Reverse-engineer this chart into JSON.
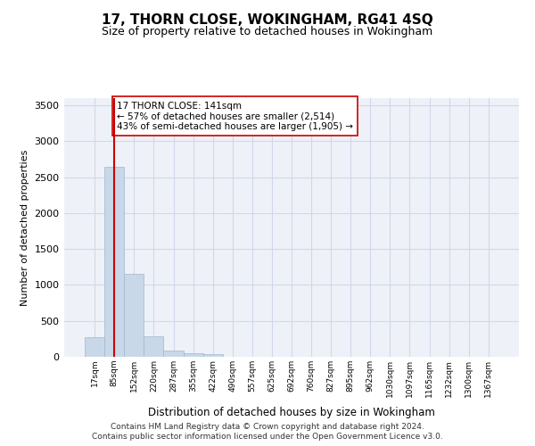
{
  "title_line1": "17, THORN CLOSE, WOKINGHAM, RG41 4SQ",
  "title_line2": "Size of property relative to detached houses in Wokingham",
  "xlabel": "Distribution of detached houses by size in Wokingham",
  "ylabel": "Number of detached properties",
  "bar_values": [
    270,
    2640,
    1160,
    280,
    90,
    45,
    40,
    0,
    0,
    0,
    0,
    0,
    0,
    0,
    0,
    0,
    0,
    0,
    0,
    0,
    0
  ],
  "bar_labels": [
    "17sqm",
    "85sqm",
    "152sqm",
    "220sqm",
    "287sqm",
    "355sqm",
    "422sqm",
    "490sqm",
    "557sqm",
    "625sqm",
    "692sqm",
    "760sqm",
    "827sqm",
    "895sqm",
    "962sqm",
    "1030sqm",
    "1097sqm",
    "1165sqm",
    "1232sqm",
    "1300sqm",
    "1367sqm"
  ],
  "bar_color": "#c8d8e8",
  "bar_edge_color": "#a0b8cc",
  "grid_color": "#d0d8e8",
  "background_color": "#eef2f8",
  "vline_x": 1.0,
  "vline_color": "#cc0000",
  "annotation_text": "17 THORN CLOSE: 141sqm\n← 57% of detached houses are smaller (2,514)\n43% of semi-detached houses are larger (1,905) →",
  "annotation_box_color": "#ffffff",
  "annotation_box_edge": "#cc0000",
  "footer_line1": "Contains HM Land Registry data © Crown copyright and database right 2024.",
  "footer_line2": "Contains public sector information licensed under the Open Government Licence v3.0.",
  "ylim": [
    0,
    3600
  ],
  "yticks": [
    0,
    500,
    1000,
    1500,
    2000,
    2500,
    3000,
    3500
  ]
}
